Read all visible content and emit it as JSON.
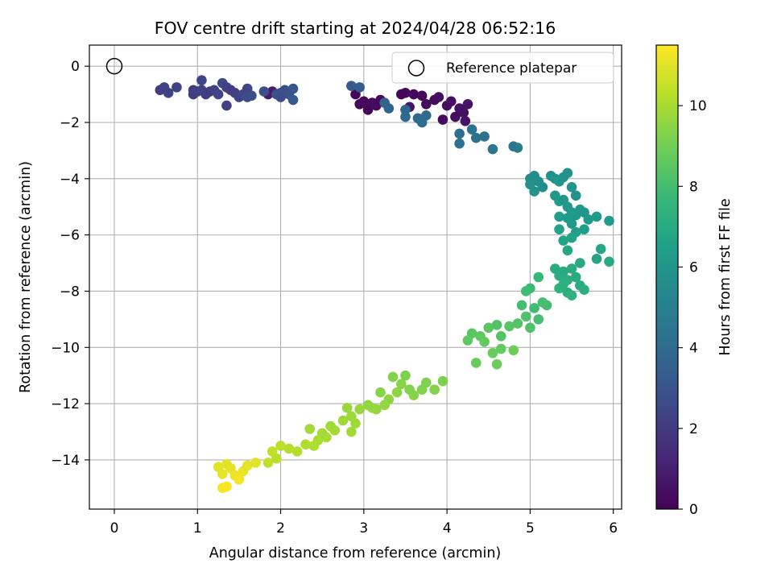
{
  "chart_data": {
    "type": "scatter",
    "title": "FOV centre drift starting at 2024/04/28 06:52:16",
    "xlabel": "Angular distance from reference (arcmin)",
    "ylabel": "Rotation from reference (arcmin)",
    "xlim": [
      -0.3,
      6.1
    ],
    "ylim": [
      -15.75,
      0.75
    ],
    "xticks": [
      0,
      1,
      2,
      3,
      4,
      5,
      6
    ],
    "yticks": [
      0,
      -2,
      -4,
      -6,
      -8,
      -10,
      -12,
      -14
    ],
    "x_tick_labels": [
      "0",
      "1",
      "2",
      "3",
      "4",
      "5",
      "6"
    ],
    "y_tick_labels": [
      "0",
      "−2",
      "−4",
      "−6",
      "−8",
      "−10",
      "−12",
      "−14"
    ],
    "grid": true,
    "legend": {
      "placement": "upper right",
      "entries": [
        {
          "label": "Reference platepar",
          "marker": "open-circle"
        }
      ]
    },
    "reference_point": {
      "x": 0,
      "y": 0
    },
    "colorbar": {
      "label": "Hours from first FF file",
      "colormap": "viridis",
      "range": [
        0,
        11.5
      ],
      "ticks": [
        0,
        2,
        4,
        6,
        8,
        10
      ],
      "tick_labels": [
        "0",
        "2",
        "4",
        "6",
        "8",
        "10"
      ]
    },
    "colormap_stops": [
      "#440154",
      "#482878",
      "#3e4989",
      "#31688e",
      "#26828e",
      "#1f9e89",
      "#35b779",
      "#6ece58",
      "#b5de2b",
      "#fde725"
    ],
    "points": [
      {
        "x": 3.45,
        "y": -1.0,
        "c": 0.1
      },
      {
        "x": 3.5,
        "y": -0.95,
        "c": 0.15
      },
      {
        "x": 3.6,
        "y": -1.0,
        "c": 0.2
      },
      {
        "x": 3.7,
        "y": -1.05,
        "c": 0.25
      },
      {
        "x": 3.75,
        "y": -1.35,
        "c": 0.3
      },
      {
        "x": 3.85,
        "y": -1.2,
        "c": 0.35
      },
      {
        "x": 3.9,
        "y": -1.1,
        "c": 0.4
      },
      {
        "x": 4.0,
        "y": -1.4,
        "c": 0.45
      },
      {
        "x": 4.05,
        "y": -1.25,
        "c": 0.5
      },
      {
        "x": 4.15,
        "y": -1.5,
        "c": 0.55
      },
      {
        "x": 4.25,
        "y": -1.35,
        "c": 0.6
      },
      {
        "x": 3.55,
        "y": -1.45,
        "c": 0.65
      },
      {
        "x": 2.9,
        "y": -1.0,
        "c": 0.2
      },
      {
        "x": 2.95,
        "y": -1.35,
        "c": 0.15
      },
      {
        "x": 3.05,
        "y": -1.55,
        "c": 0.1
      },
      {
        "x": 3.1,
        "y": -1.3,
        "c": 0.2
      },
      {
        "x": 3.0,
        "y": -1.25,
        "c": 0.3
      },
      {
        "x": 3.15,
        "y": -1.4,
        "c": 0.35
      },
      {
        "x": 3.2,
        "y": -1.2,
        "c": 0.25
      },
      {
        "x": 3.95,
        "y": -1.9,
        "c": 0.3
      },
      {
        "x": 4.1,
        "y": -1.8,
        "c": 0.4
      },
      {
        "x": 4.2,
        "y": -1.65,
        "c": 0.5
      },
      {
        "x": 4.22,
        "y": -1.95,
        "c": 0.6
      },
      {
        "x": 1.85,
        "y": -1.0,
        "c": 0.8
      },
      {
        "x": 1.9,
        "y": -0.9,
        "c": 0.9
      },
      {
        "x": 0.55,
        "y": -0.85,
        "c": 2.1
      },
      {
        "x": 0.6,
        "y": -0.75,
        "c": 2.2
      },
      {
        "x": 0.65,
        "y": -0.95,
        "c": 2.3
      },
      {
        "x": 0.75,
        "y": -0.75,
        "c": 2.25
      },
      {
        "x": 0.95,
        "y": -0.85,
        "c": 2.0
      },
      {
        "x": 0.95,
        "y": -1.0,
        "c": 2.1
      },
      {
        "x": 1.0,
        "y": -0.9,
        "c": 2.2
      },
      {
        "x": 1.05,
        "y": -0.5,
        "c": 2.4
      },
      {
        "x": 1.05,
        "y": -0.85,
        "c": 2.3
      },
      {
        "x": 1.1,
        "y": -1.0,
        "c": 2.15
      },
      {
        "x": 1.15,
        "y": -0.9,
        "c": 2.05
      },
      {
        "x": 1.2,
        "y": -0.85,
        "c": 2.2
      },
      {
        "x": 1.25,
        "y": -1.0,
        "c": 2.4
      },
      {
        "x": 1.3,
        "y": -0.6,
        "c": 2.5
      },
      {
        "x": 1.35,
        "y": -0.75,
        "c": 2.3
      },
      {
        "x": 1.35,
        "y": -1.4,
        "c": 2.2
      },
      {
        "x": 1.4,
        "y": -0.85,
        "c": 2.1
      },
      {
        "x": 1.45,
        "y": -0.95,
        "c": 2.2
      },
      {
        "x": 1.5,
        "y": -1.1,
        "c": 2.3
      },
      {
        "x": 1.55,
        "y": -1.0,
        "c": 2.5
      },
      {
        "x": 1.6,
        "y": -0.8,
        "c": 2.4
      },
      {
        "x": 1.6,
        "y": -1.1,
        "c": 2.6
      },
      {
        "x": 1.65,
        "y": -1.05,
        "c": 2.7
      },
      {
        "x": 1.8,
        "y": -0.9,
        "c": 2.8
      },
      {
        "x": 1.95,
        "y": -1.0,
        "c": 2.9
      },
      {
        "x": 2.0,
        "y": -0.95,
        "c": 3.0
      },
      {
        "x": 2.0,
        "y": -1.1,
        "c": 2.6
      },
      {
        "x": 2.05,
        "y": -0.85,
        "c": 2.8
      },
      {
        "x": 2.1,
        "y": -1.0,
        "c": 2.9
      },
      {
        "x": 2.15,
        "y": -0.8,
        "c": 3.1
      },
      {
        "x": 2.15,
        "y": -1.2,
        "c": 3.2
      },
      {
        "x": 2.85,
        "y": -0.7,
        "c": 3.3
      },
      {
        "x": 2.95,
        "y": -0.75,
        "c": 3.4
      },
      {
        "x": 3.25,
        "y": -1.3,
        "c": 3.6
      },
      {
        "x": 3.3,
        "y": -1.5,
        "c": 3.7
      },
      {
        "x": 3.5,
        "y": -1.55,
        "c": 3.8
      },
      {
        "x": 3.5,
        "y": -1.8,
        "c": 3.9
      },
      {
        "x": 3.65,
        "y": -1.85,
        "c": 4.0
      },
      {
        "x": 3.7,
        "y": -2.0,
        "c": 4.1
      },
      {
        "x": 3.75,
        "y": -1.75,
        "c": 4.0
      },
      {
        "x": 4.15,
        "y": -2.4,
        "c": 4.2
      },
      {
        "x": 4.15,
        "y": -2.75,
        "c": 4.3
      },
      {
        "x": 4.3,
        "y": -2.25,
        "c": 4.4
      },
      {
        "x": 4.35,
        "y": -2.55,
        "c": 4.3
      },
      {
        "x": 4.45,
        "y": -2.5,
        "c": 4.4
      },
      {
        "x": 4.55,
        "y": -2.95,
        "c": 4.5
      },
      {
        "x": 4.8,
        "y": -2.85,
        "c": 4.6
      },
      {
        "x": 4.85,
        "y": -2.9,
        "c": 4.7
      },
      {
        "x": 5.0,
        "y": -4.0,
        "c": 5.6
      },
      {
        "x": 5.05,
        "y": -3.9,
        "c": 5.6
      },
      {
        "x": 5.1,
        "y": -4.1,
        "c": 5.7
      },
      {
        "x": 5.0,
        "y": -4.2,
        "c": 5.8
      },
      {
        "x": 5.05,
        "y": -4.45,
        "c": 5.9
      },
      {
        "x": 5.15,
        "y": -4.3,
        "c": 5.7
      },
      {
        "x": 5.25,
        "y": -3.9,
        "c": 5.8
      },
      {
        "x": 5.3,
        "y": -4.0,
        "c": 5.9
      },
      {
        "x": 5.35,
        "y": -4.1,
        "c": 6.0
      },
      {
        "x": 5.4,
        "y": -3.95,
        "c": 5.9
      },
      {
        "x": 5.45,
        "y": -3.8,
        "c": 5.8
      },
      {
        "x": 5.5,
        "y": -4.3,
        "c": 6.0
      },
      {
        "x": 5.55,
        "y": -4.6,
        "c": 5.9
      },
      {
        "x": 5.3,
        "y": -4.6,
        "c": 6.1
      },
      {
        "x": 5.35,
        "y": -4.8,
        "c": 6.2
      },
      {
        "x": 5.4,
        "y": -4.75,
        "c": 6.0
      },
      {
        "x": 5.45,
        "y": -5.0,
        "c": 6.1
      },
      {
        "x": 5.5,
        "y": -5.2,
        "c": 6.2
      },
      {
        "x": 5.55,
        "y": -5.3,
        "c": 6.3
      },
      {
        "x": 5.6,
        "y": -5.1,
        "c": 6.1
      },
      {
        "x": 5.65,
        "y": -5.2,
        "c": 6.0
      },
      {
        "x": 5.7,
        "y": -5.45,
        "c": 6.2
      },
      {
        "x": 5.8,
        "y": -5.35,
        "c": 6.3
      },
      {
        "x": 5.95,
        "y": -5.5,
        "c": 6.2
      },
      {
        "x": 5.35,
        "y": -5.35,
        "c": 6.4
      },
      {
        "x": 5.45,
        "y": -5.4,
        "c": 6.3
      },
      {
        "x": 5.5,
        "y": -5.6,
        "c": 6.2
      },
      {
        "x": 5.55,
        "y": -5.9,
        "c": 6.5
      },
      {
        "x": 5.65,
        "y": -5.8,
        "c": 6.4
      },
      {
        "x": 5.35,
        "y": -5.8,
        "c": 6.6
      },
      {
        "x": 5.4,
        "y": -6.2,
        "c": 6.7
      },
      {
        "x": 5.45,
        "y": -6.55,
        "c": 6.8
      },
      {
        "x": 5.5,
        "y": -6.1,
        "c": 6.6
      },
      {
        "x": 5.8,
        "y": -6.85,
        "c": 6.7
      },
      {
        "x": 5.85,
        "y": -6.5,
        "c": 6.8
      },
      {
        "x": 5.95,
        "y": -6.95,
        "c": 6.9
      },
      {
        "x": 5.3,
        "y": -7.2,
        "c": 7.0
      },
      {
        "x": 5.35,
        "y": -7.45,
        "c": 7.1
      },
      {
        "x": 5.4,
        "y": -7.3,
        "c": 7.0
      },
      {
        "x": 5.45,
        "y": -7.6,
        "c": 7.2
      },
      {
        "x": 5.5,
        "y": -7.2,
        "c": 7.1
      },
      {
        "x": 5.55,
        "y": -7.5,
        "c": 7.0
      },
      {
        "x": 5.6,
        "y": -7.0,
        "c": 6.9
      },
      {
        "x": 5.45,
        "y": -8.05,
        "c": 7.2
      },
      {
        "x": 5.5,
        "y": -8.15,
        "c": 7.3
      },
      {
        "x": 5.6,
        "y": -7.8,
        "c": 7.1
      },
      {
        "x": 5.65,
        "y": -7.95,
        "c": 7.2
      },
      {
        "x": 5.35,
        "y": -7.9,
        "c": 7.4
      },
      {
        "x": 5.4,
        "y": -7.75,
        "c": 7.3
      },
      {
        "x": 5.1,
        "y": -7.5,
        "c": 7.7
      },
      {
        "x": 5.0,
        "y": -7.9,
        "c": 7.8
      },
      {
        "x": 4.95,
        "y": -8.0,
        "c": 7.9
      },
      {
        "x": 4.9,
        "y": -8.5,
        "c": 8.0
      },
      {
        "x": 5.05,
        "y": -8.6,
        "c": 7.9
      },
      {
        "x": 5.15,
        "y": -8.4,
        "c": 8.1
      },
      {
        "x": 5.2,
        "y": -8.5,
        "c": 8.0
      },
      {
        "x": 4.95,
        "y": -8.9,
        "c": 8.2
      },
      {
        "x": 5.1,
        "y": -9.0,
        "c": 8.1
      },
      {
        "x": 5.0,
        "y": -9.3,
        "c": 8.3
      },
      {
        "x": 4.85,
        "y": -9.15,
        "c": 8.4
      },
      {
        "x": 4.75,
        "y": -9.25,
        "c": 8.5
      },
      {
        "x": 4.65,
        "y": -9.6,
        "c": 8.4
      },
      {
        "x": 4.6,
        "y": -9.2,
        "c": 8.3
      },
      {
        "x": 4.5,
        "y": -9.3,
        "c": 8.5
      },
      {
        "x": 4.4,
        "y": -9.6,
        "c": 8.6
      },
      {
        "x": 4.45,
        "y": -9.8,
        "c": 8.7
      },
      {
        "x": 4.3,
        "y": -9.5,
        "c": 8.5
      },
      {
        "x": 4.25,
        "y": -9.75,
        "c": 8.6
      },
      {
        "x": 4.55,
        "y": -10.2,
        "c": 8.8
      },
      {
        "x": 4.65,
        "y": -10.05,
        "c": 8.7
      },
      {
        "x": 4.6,
        "y": -10.6,
        "c": 8.9
      },
      {
        "x": 4.35,
        "y": -10.55,
        "c": 8.8
      },
      {
        "x": 4.8,
        "y": -10.1,
        "c": 8.9
      },
      {
        "x": 3.95,
        "y": -11.2,
        "c": 9.2
      },
      {
        "x": 3.85,
        "y": -11.5,
        "c": 9.3
      },
      {
        "x": 3.75,
        "y": -11.25,
        "c": 9.2
      },
      {
        "x": 3.7,
        "y": -11.5,
        "c": 9.3
      },
      {
        "x": 3.6,
        "y": -11.7,
        "c": 9.4
      },
      {
        "x": 3.55,
        "y": -11.5,
        "c": 9.3
      },
      {
        "x": 3.5,
        "y": -11.0,
        "c": 9.2
      },
      {
        "x": 3.45,
        "y": -11.3,
        "c": 9.4
      },
      {
        "x": 3.4,
        "y": -11.6,
        "c": 9.5
      },
      {
        "x": 3.35,
        "y": -11.05,
        "c": 9.3
      },
      {
        "x": 3.3,
        "y": -11.85,
        "c": 9.5
      },
      {
        "x": 3.25,
        "y": -12.05,
        "c": 9.6
      },
      {
        "x": 3.2,
        "y": -11.6,
        "c": 9.4
      },
      {
        "x": 3.15,
        "y": -12.2,
        "c": 9.6
      },
      {
        "x": 3.1,
        "y": -12.15,
        "c": 9.7
      },
      {
        "x": 3.05,
        "y": -12.05,
        "c": 9.6
      },
      {
        "x": 2.95,
        "y": -12.2,
        "c": 9.7
      },
      {
        "x": 2.85,
        "y": -12.45,
        "c": 9.8
      },
      {
        "x": 2.8,
        "y": -12.15,
        "c": 9.7
      },
      {
        "x": 2.75,
        "y": -12.6,
        "c": 9.8
      },
      {
        "x": 2.65,
        "y": -12.95,
        "c": 9.9
      },
      {
        "x": 2.6,
        "y": -12.8,
        "c": 9.8
      },
      {
        "x": 2.55,
        "y": -13.2,
        "c": 10.0
      },
      {
        "x": 2.5,
        "y": -13.05,
        "c": 9.9
      },
      {
        "x": 2.45,
        "y": -13.3,
        "c": 10.0
      },
      {
        "x": 2.4,
        "y": -13.5,
        "c": 10.1
      },
      {
        "x": 2.35,
        "y": -12.9,
        "c": 9.9
      },
      {
        "x": 2.3,
        "y": -13.45,
        "c": 10.1
      },
      {
        "x": 2.2,
        "y": -13.7,
        "c": 10.2
      },
      {
        "x": 2.1,
        "y": -13.6,
        "c": 10.2
      },
      {
        "x": 2.0,
        "y": -13.5,
        "c": 10.3
      },
      {
        "x": 1.95,
        "y": -13.95,
        "c": 10.3
      },
      {
        "x": 1.9,
        "y": -13.7,
        "c": 10.4
      },
      {
        "x": 1.85,
        "y": -14.1,
        "c": 10.4
      },
      {
        "x": 2.85,
        "y": -13.0,
        "c": 9.9
      },
      {
        "x": 2.9,
        "y": -12.7,
        "c": 9.8
      },
      {
        "x": 1.35,
        "y": -14.15,
        "c": 11.0
      },
      {
        "x": 1.4,
        "y": -14.3,
        "c": 11.1
      },
      {
        "x": 1.45,
        "y": -14.55,
        "c": 11.2
      },
      {
        "x": 1.3,
        "y": -14.5,
        "c": 11.1
      },
      {
        "x": 1.25,
        "y": -14.25,
        "c": 11.0
      },
      {
        "x": 1.5,
        "y": -14.7,
        "c": 11.3
      },
      {
        "x": 1.55,
        "y": -14.4,
        "c": 11.2
      },
      {
        "x": 1.6,
        "y": -14.2,
        "c": 11.1
      },
      {
        "x": 1.35,
        "y": -14.95,
        "c": 11.4
      },
      {
        "x": 1.3,
        "y": -15.0,
        "c": 11.4
      },
      {
        "x": 1.7,
        "y": -14.1,
        "c": 11.0
      }
    ]
  }
}
